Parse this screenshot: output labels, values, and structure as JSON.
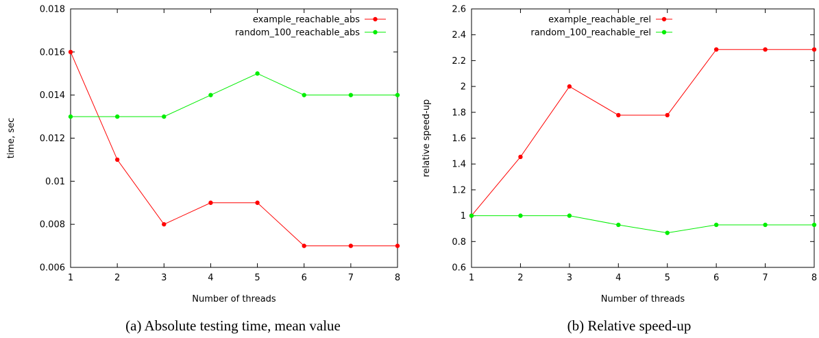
{
  "chart_data": [
    {
      "type": "line",
      "xlabel": "Number of threads",
      "ylabel": "time, sec",
      "caption": "(a) Absolute testing time, mean value",
      "x": [
        1,
        2,
        3,
        4,
        5,
        6,
        7,
        8
      ],
      "xticks": [
        "1",
        "2",
        "3",
        "4",
        "5",
        "6",
        "7",
        "8"
      ],
      "xlim": [
        1,
        8
      ],
      "ylim": [
        0.006,
        0.018
      ],
      "yticks": [
        0.006,
        0.008,
        0.01,
        0.012,
        0.014,
        0.016,
        0.018
      ],
      "ytick_labels": [
        "0.006",
        "0.008",
        "0.01",
        "0.012",
        "0.014",
        "0.016",
        "0.018"
      ],
      "legend_position": "top-right",
      "grid": false,
      "series": [
        {
          "name": "example_reachable_abs",
          "color": "#ff0000",
          "values": [
            0.016,
            0.011,
            0.008,
            0.009,
            0.009,
            0.007,
            0.007,
            0.007
          ]
        },
        {
          "name": "random_100_reachable_abs",
          "color": "#00ee00",
          "values": [
            0.013,
            0.013,
            0.013,
            0.014,
            0.015,
            0.014,
            0.014,
            0.014
          ]
        }
      ]
    },
    {
      "type": "line",
      "xlabel": "Number of threads",
      "ylabel": "relative speed-up",
      "caption": "(b) Relative speed-up",
      "x": [
        1,
        2,
        3,
        4,
        5,
        6,
        7,
        8
      ],
      "xticks": [
        "1",
        "2",
        "3",
        "4",
        "5",
        "6",
        "7",
        "8"
      ],
      "xlim": [
        1,
        8
      ],
      "ylim": [
        0.6,
        2.6
      ],
      "yticks": [
        0.6,
        0.8,
        1,
        1.2,
        1.4,
        1.6,
        1.8,
        2,
        2.2,
        2.4,
        2.6
      ],
      "ytick_labels": [
        "0.6",
        "0.8",
        "1",
        "1.2",
        "1.4",
        "1.6",
        "1.8",
        "2",
        "2.2",
        "2.4",
        "2.6"
      ],
      "legend_position": "top",
      "grid": false,
      "series": [
        {
          "name": "example_reachable_rel",
          "color": "#ff0000",
          "values": [
            1.0,
            1.455,
            2.0,
            1.778,
            1.778,
            2.286,
            2.286,
            2.286
          ]
        },
        {
          "name": "random_100_reachable_rel",
          "color": "#00ee00",
          "values": [
            1.0,
            1.0,
            1.0,
            0.929,
            0.867,
            0.929,
            0.929,
            0.929
          ]
        }
      ]
    }
  ]
}
